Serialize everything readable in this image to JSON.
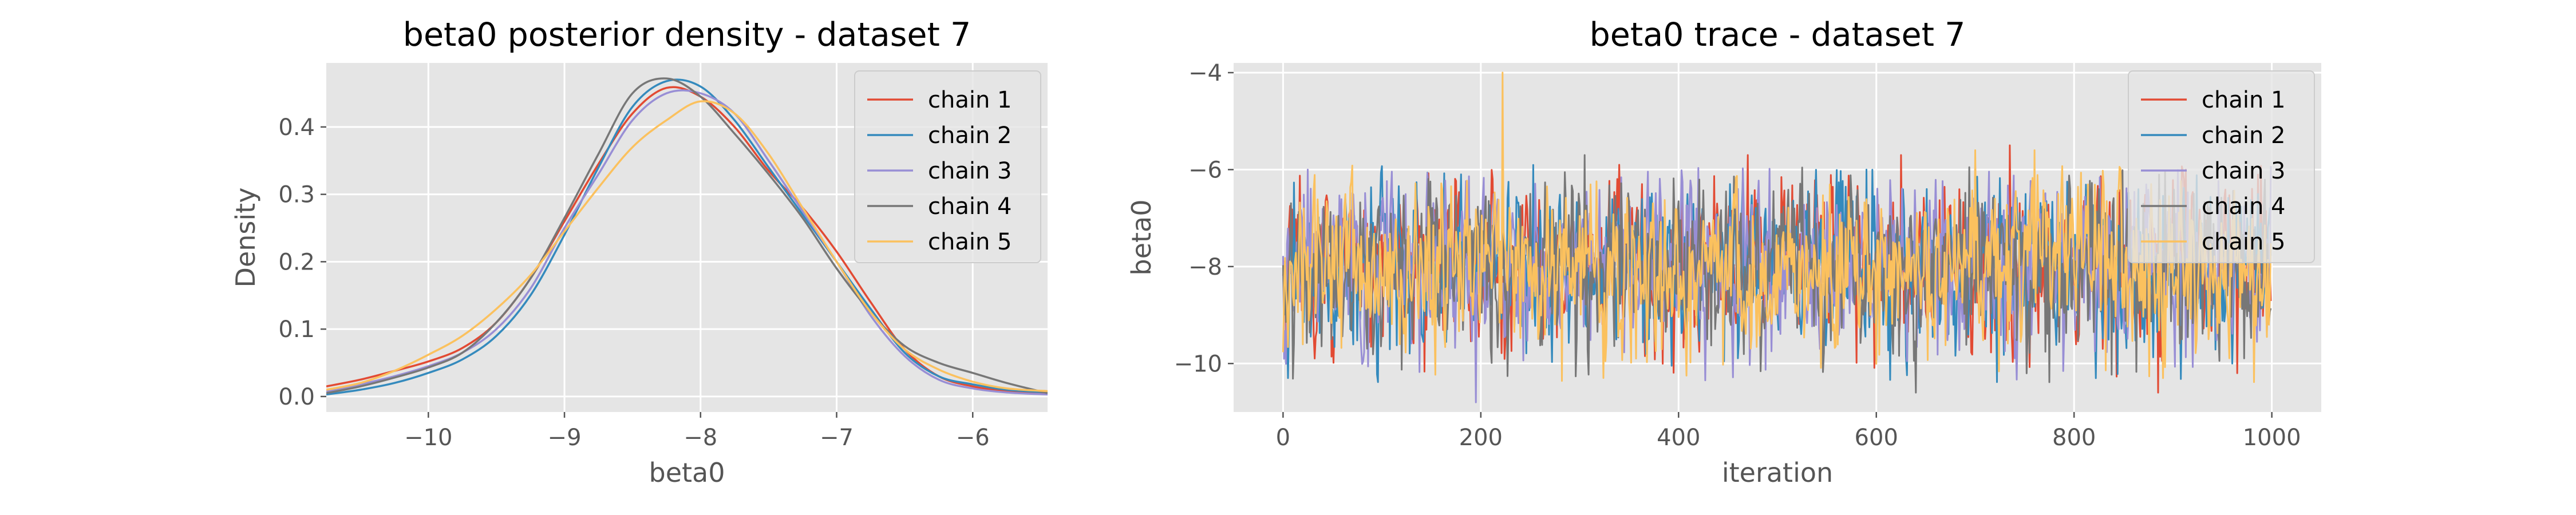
{
  "chart_data": [
    {
      "type": "line",
      "title": "beta0 posterior density - dataset 7",
      "xlabel": "beta0",
      "ylabel": "Density",
      "xlim": [
        -10.75,
        -5.45
      ],
      "ylim": [
        -0.023,
        0.495
      ],
      "xticks": [
        -10,
        -9,
        -8,
        -7,
        -6
      ],
      "yticks": [
        0.0,
        0.1,
        0.2,
        0.3,
        0.4
      ],
      "grid": true,
      "legend": "top-right",
      "series": [
        {
          "name": "chain 1",
          "color": "#E24A33",
          "x": [
            -10.75,
            -10.5,
            -10.25,
            -10,
            -9.75,
            -9.5,
            -9.25,
            -9,
            -8.75,
            -8.5,
            -8.25,
            -8,
            -7.75,
            -7.5,
            -7.25,
            -7,
            -6.75,
            -6.5,
            -6.25,
            -6,
            -5.75,
            -5.45
          ],
          "y": [
            0.015,
            0.025,
            0.038,
            0.052,
            0.072,
            0.11,
            0.175,
            0.26,
            0.345,
            0.42,
            0.458,
            0.445,
            0.4,
            0.335,
            0.28,
            0.215,
            0.14,
            0.07,
            0.03,
            0.015,
            0.008,
            0.005
          ]
        },
        {
          "name": "chain 2",
          "color": "#348ABD",
          "x": [
            -10.75,
            -10.5,
            -10.25,
            -10,
            -9.75,
            -9.5,
            -9.25,
            -9,
            -8.75,
            -8.5,
            -8.25,
            -8,
            -7.75,
            -7.5,
            -7.25,
            -7,
            -6.75,
            -6.5,
            -6.25,
            -6,
            -5.75,
            -5.45
          ],
          "y": [
            0.003,
            0.01,
            0.02,
            0.035,
            0.055,
            0.09,
            0.15,
            0.24,
            0.34,
            0.43,
            0.468,
            0.46,
            0.41,
            0.34,
            0.27,
            0.2,
            0.13,
            0.065,
            0.03,
            0.018,
            0.01,
            0.006
          ]
        },
        {
          "name": "chain 3",
          "color": "#988ED5",
          "x": [
            -10.75,
            -10.5,
            -10.25,
            -10,
            -9.75,
            -9.5,
            -9.25,
            -9,
            -8.75,
            -8.5,
            -8.25,
            -8,
            -7.75,
            -7.5,
            -7.25,
            -7,
            -6.75,
            -6.5,
            -6.25,
            -6,
            -5.75,
            -5.45
          ],
          "y": [
            0.008,
            0.018,
            0.03,
            0.045,
            0.065,
            0.1,
            0.16,
            0.25,
            0.33,
            0.41,
            0.45,
            0.45,
            0.42,
            0.35,
            0.275,
            0.2,
            0.12,
            0.06,
            0.025,
            0.012,
            0.006,
            0.003
          ]
        },
        {
          "name": "chain 4",
          "color": "#777777",
          "x": [
            -10.75,
            -10.5,
            -10.25,
            -10,
            -9.75,
            -9.5,
            -9.25,
            -9,
            -8.75,
            -8.5,
            -8.25,
            -8,
            -7.75,
            -7.5,
            -7.25,
            -7,
            -6.75,
            -6.5,
            -6.25,
            -6,
            -5.75,
            -5.45
          ],
          "y": [
            0.005,
            0.015,
            0.028,
            0.043,
            0.065,
            0.11,
            0.175,
            0.265,
            0.36,
            0.45,
            0.472,
            0.445,
            0.39,
            0.33,
            0.265,
            0.19,
            0.125,
            0.075,
            0.05,
            0.035,
            0.02,
            0.005
          ]
        },
        {
          "name": "chain 5",
          "color": "#FBC15E",
          "x": [
            -10.75,
            -10.5,
            -10.25,
            -10,
            -9.75,
            -9.5,
            -9.25,
            -9,
            -8.75,
            -8.5,
            -8.25,
            -8,
            -7.75,
            -7.5,
            -7.25,
            -7,
            -6.75,
            -6.5,
            -6.25,
            -6,
            -5.75,
            -5.45
          ],
          "y": [
            0.01,
            0.02,
            0.038,
            0.062,
            0.09,
            0.13,
            0.18,
            0.245,
            0.31,
            0.37,
            0.41,
            0.438,
            0.42,
            0.36,
            0.28,
            0.2,
            0.125,
            0.07,
            0.04,
            0.022,
            0.012,
            0.008
          ]
        }
      ]
    },
    {
      "type": "line",
      "title": "beta0 trace - dataset 7",
      "xlabel": "iteration",
      "ylabel": "beta0",
      "xlim": [
        -50,
        1050
      ],
      "ylim": [
        -11,
        -3.8
      ],
      "xticks": [
        0,
        200,
        400,
        600,
        800,
        1000
      ],
      "yticks": [
        -10,
        -8,
        -6,
        -4
      ],
      "grid": true,
      "legend": "top-right",
      "n_iterations": 1000,
      "series": [
        {
          "name": "chain 1",
          "color": "#E24A33",
          "mean": -8.0,
          "sd": 0.85,
          "extremes": [
            [
              470,
              -5.7
            ],
            [
              735,
              -5.5
            ],
            [
              885,
              -10.6
            ],
            [
              625,
              -5.7
            ]
          ]
        },
        {
          "name": "chain 2",
          "color": "#348ABD",
          "mean": -8.0,
          "sd": 0.85,
          "extremes": [
            [
              5,
              -10.3
            ],
            [
              590,
              -6.0
            ],
            [
              960,
              -10.0
            ]
          ]
        },
        {
          "name": "chain 3",
          "color": "#988ED5",
          "mean": -8.0,
          "sd": 0.85,
          "extremes": [
            [
              25,
              -6.0
            ],
            [
              195,
              -10.8
            ],
            [
              460,
              -6.4
            ]
          ]
        },
        {
          "name": "chain 4",
          "color": "#777777",
          "mean": -8.0,
          "sd": 0.85,
          "extremes": [
            [
              305,
              -5.7
            ],
            [
              640,
              -10.6
            ],
            [
              250,
              -6.5
            ]
          ]
        },
        {
          "name": "chain 5",
          "color": "#FBC15E",
          "mean": -8.0,
          "sd": 0.85,
          "extremes": [
            [
              222,
              -4.0
            ],
            [
              700,
              -5.6
            ],
            [
              760,
              -5.6
            ],
            [
              890,
              -10.3
            ]
          ]
        }
      ]
    }
  ]
}
